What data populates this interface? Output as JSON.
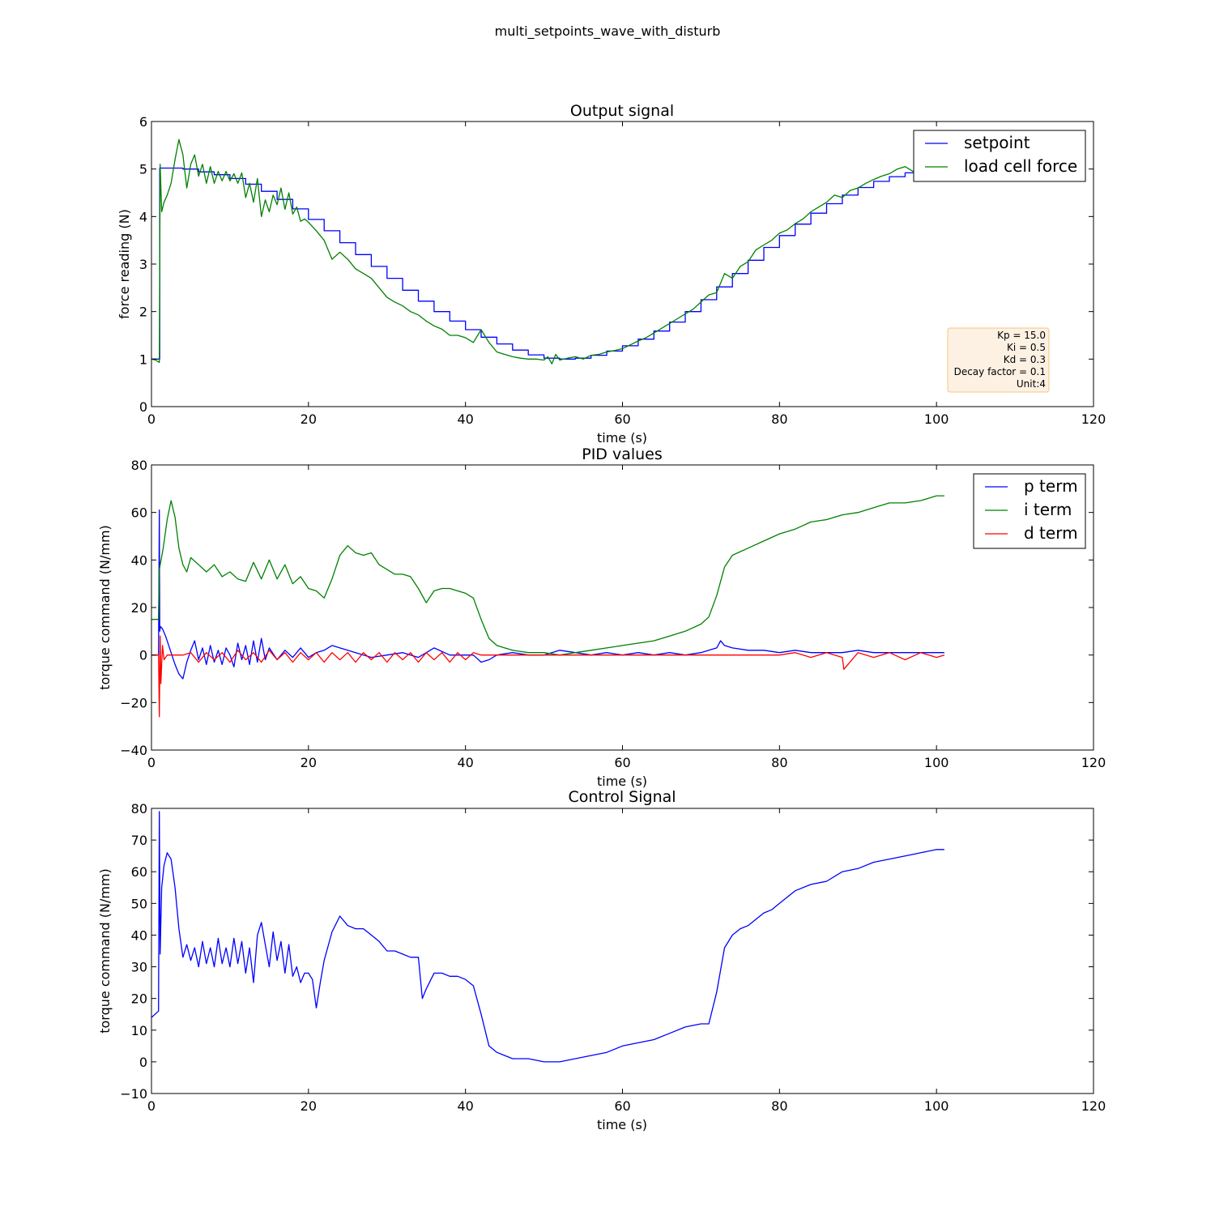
{
  "figure_title": "multi_setpoints_wave_with_disturb",
  "chart_data": [
    {
      "type": "line",
      "title": "Output signal",
      "xlabel": "time (s)",
      "ylabel": "force reading (N)",
      "xlim": [
        0,
        120
      ],
      "ylim": [
        0,
        6
      ],
      "xticks": [
        0,
        20,
        40,
        60,
        80,
        100,
        120
      ],
      "yticks": [
        0,
        1,
        2,
        3,
        4,
        5,
        6
      ],
      "legend_position": "top-right",
      "series": [
        {
          "name": "setpoint",
          "color": "#0000ff",
          "step": true,
          "x": [
            0,
            1,
            1.05,
            2,
            4,
            6,
            8,
            10,
            12,
            14,
            16,
            18,
            20,
            22,
            24,
            26,
            28,
            30,
            32,
            34,
            36,
            38,
            40,
            42,
            44,
            46,
            48,
            50,
            52,
            54,
            56,
            58,
            60,
            62,
            64,
            66,
            68,
            70,
            72,
            74,
            76,
            78,
            80,
            82,
            84,
            86,
            88,
            90,
            92,
            94,
            96,
            98,
            100,
            101
          ],
          "y": [
            1.0,
            1.0,
            5.02,
            5.02,
            5.0,
            4.94,
            4.88,
            4.8,
            4.68,
            4.53,
            4.36,
            4.16,
            3.94,
            3.7,
            3.45,
            3.2,
            2.95,
            2.7,
            2.45,
            2.22,
            2.0,
            1.8,
            1.62,
            1.46,
            1.32,
            1.19,
            1.09,
            1.02,
            1.0,
            1.02,
            1.08,
            1.17,
            1.28,
            1.42,
            1.59,
            1.78,
            2.0,
            2.25,
            2.52,
            2.8,
            3.08,
            3.35,
            3.6,
            3.84,
            4.07,
            4.27,
            4.45,
            4.61,
            4.74,
            4.84,
            4.92,
            4.97,
            4.99,
            5.0
          ]
        },
        {
          "name": "load cell force",
          "color": "#008000",
          "x": [
            0,
            0.5,
            1,
            1.1,
            1.3,
            1.6,
            2,
            2.5,
            3,
            3.5,
            4,
            4.5,
            5,
            5.5,
            6,
            6.5,
            7,
            7.5,
            8,
            8.5,
            9,
            9.5,
            10,
            10.5,
            11,
            11.5,
            12,
            12.5,
            13,
            13.5,
            14,
            14.5,
            15,
            15.5,
            16,
            16.5,
            17,
            17.5,
            18,
            18.5,
            19,
            19.5,
            20,
            21,
            22,
            23,
            24,
            25,
            26,
            27,
            28,
            29,
            30,
            31,
            32,
            33,
            34,
            35,
            36,
            37,
            38,
            39,
            40,
            41,
            42,
            43,
            44,
            45,
            46,
            47,
            48,
            49,
            50,
            50.5,
            51,
            51.5,
            52,
            53,
            54,
            55,
            56,
            57,
            58,
            59,
            60,
            61,
            62,
            63,
            64,
            65,
            66,
            67,
            68,
            69,
            70,
            71,
            72,
            73,
            74,
            75,
            76,
            77,
            78,
            79,
            80,
            81,
            82,
            83,
            84,
            85,
            86,
            87,
            88,
            89,
            90,
            91,
            92,
            93,
            94,
            95,
            96,
            97,
            98,
            99,
            100,
            101
          ],
          "y": [
            1.0,
            0.98,
            0.93,
            5.1,
            4.1,
            4.3,
            4.45,
            4.7,
            5.2,
            5.62,
            5.3,
            4.6,
            5.1,
            5.3,
            4.85,
            5.1,
            4.7,
            5.05,
            4.7,
            4.95,
            4.75,
            4.95,
            4.75,
            4.9,
            4.7,
            4.92,
            4.4,
            4.7,
            4.3,
            4.8,
            4.0,
            4.35,
            4.1,
            4.45,
            4.25,
            4.6,
            4.15,
            4.5,
            4.05,
            4.2,
            3.9,
            3.95,
            3.88,
            3.7,
            3.5,
            3.1,
            3.25,
            3.1,
            2.9,
            2.8,
            2.7,
            2.5,
            2.3,
            2.2,
            2.12,
            2.0,
            1.93,
            1.8,
            1.7,
            1.63,
            1.5,
            1.5,
            1.45,
            1.35,
            1.62,
            1.35,
            1.15,
            1.1,
            1.05,
            1.02,
            1.0,
            1.0,
            0.98,
            1.05,
            0.9,
            1.1,
            0.98,
            1.02,
            1.05,
            1.0,
            1.08,
            1.1,
            1.15,
            1.18,
            1.22,
            1.3,
            1.38,
            1.45,
            1.55,
            1.65,
            1.75,
            1.85,
            1.95,
            2.05,
            2.2,
            2.35,
            2.4,
            2.8,
            2.7,
            2.95,
            3.05,
            3.3,
            3.4,
            3.5,
            3.65,
            3.72,
            3.85,
            3.95,
            4.1,
            4.2,
            4.3,
            4.45,
            4.4,
            4.55,
            4.6,
            4.7,
            4.78,
            4.85,
            4.9,
            5.0,
            5.05,
            4.95,
            4.98,
            5.02,
            4.98,
            4.95
          ]
        }
      ],
      "annotation": [
        "Kp = 15.0",
        "Ki = 0.5",
        "Kd = 0.3",
        "Decay factor = 0.1",
        "Unit:4"
      ]
    },
    {
      "type": "line",
      "title": "PID values",
      "xlabel": "time (s)",
      "ylabel": "torque command (N/mm)",
      "xlim": [
        0,
        120
      ],
      "ylim": [
        -40,
        80
      ],
      "xticks": [
        0,
        20,
        40,
        60,
        80,
        100,
        120
      ],
      "yticks": [
        -40,
        -20,
        0,
        20,
        40,
        60,
        80
      ],
      "legend_position": "top-right",
      "series": [
        {
          "name": "p term",
          "color": "#0000ff",
          "x": [
            0,
            0.9,
            1.0,
            1.05,
            1.15,
            1.4,
            1.8,
            2.2,
            2.6,
            3.0,
            3.5,
            4.0,
            4.5,
            5,
            5.5,
            6,
            6.5,
            7,
            7.5,
            8,
            8.5,
            9,
            9.5,
            10,
            10.5,
            11,
            11.5,
            12,
            12.5,
            13,
            13.5,
            14,
            14.5,
            15,
            16,
            17,
            18,
            19,
            20,
            21,
            22,
            23,
            24,
            26,
            28,
            30,
            32,
            34,
            36,
            38,
            40,
            41,
            42,
            43,
            44,
            46,
            48,
            50,
            52,
            54,
            56,
            58,
            60,
            62,
            64,
            66,
            68,
            70,
            71,
            72,
            72.5,
            73,
            74,
            76,
            78,
            80,
            82,
            84,
            86,
            88,
            90,
            92,
            94,
            96,
            98,
            100,
            101
          ],
          "y": [
            0,
            0,
            61,
            10,
            12,
            11,
            8,
            4,
            0,
            -4,
            -8,
            -10,
            -3,
            2,
            6,
            -2,
            3,
            -4,
            4,
            -3,
            2,
            -4,
            3,
            0,
            -5,
            5,
            -2,
            4,
            -4,
            6,
            -3,
            7,
            -2,
            3,
            -2,
            2,
            -1,
            3,
            -1,
            1,
            2,
            4,
            3,
            1,
            -1,
            0,
            1,
            -1,
            3,
            0,
            0,
            0,
            -3,
            -2,
            0,
            1,
            0,
            0,
            2,
            1,
            0,
            1,
            0,
            1,
            0,
            1,
            0,
            1,
            2,
            3,
            6,
            4,
            3,
            2,
            2,
            1,
            2,
            1,
            1,
            1,
            2,
            1,
            1,
            1,
            1,
            1,
            1
          ]
        },
        {
          "name": "i term",
          "color": "#008000",
          "x": [
            0,
            0.9,
            1.0,
            1.5,
            2,
            2.5,
            3,
            3.5,
            4,
            4.5,
            5,
            6,
            7,
            8,
            9,
            10,
            11,
            12,
            13,
            14,
            15,
            16,
            17,
            18,
            19,
            20,
            21,
            22,
            23,
            24,
            25,
            26,
            27,
            28,
            29,
            30,
            31,
            32,
            33,
            34,
            35,
            36,
            37,
            38,
            39,
            40,
            41,
            42,
            43,
            44,
            45,
            46,
            48,
            50,
            52,
            54,
            56,
            58,
            60,
            62,
            64,
            66,
            68,
            70,
            71,
            72,
            73,
            74,
            76,
            78,
            80,
            82,
            84,
            86,
            88,
            90,
            92,
            94,
            96,
            98,
            99,
            100,
            101
          ],
          "y": [
            15,
            15,
            36,
            45,
            57,
            65,
            58,
            45,
            38,
            35,
            41,
            38,
            35,
            38,
            33,
            35,
            32,
            31,
            39,
            32,
            40,
            32,
            38,
            30,
            33,
            28,
            27,
            24,
            32,
            42,
            46,
            43,
            42,
            43,
            38,
            36,
            34,
            34,
            33,
            28,
            22,
            27,
            28,
            28,
            27,
            26,
            24,
            15,
            7,
            4,
            3,
            2,
            1,
            1,
            0,
            1,
            2,
            3,
            4,
            5,
            6,
            8,
            10,
            13,
            16,
            25,
            37,
            42,
            45,
            48,
            51,
            53,
            56,
            57,
            59,
            60,
            62,
            64,
            64,
            65,
            66,
            67,
            67
          ]
        },
        {
          "name": "d term",
          "color": "#ff0000",
          "x": [
            0,
            0.9,
            1.0,
            1.1,
            1.2,
            1.4,
            1.6,
            2,
            3,
            4,
            5,
            6,
            7,
            8,
            9,
            10,
            11,
            12,
            13,
            14,
            15,
            16,
            17,
            18,
            19,
            20,
            21,
            22,
            23,
            24,
            25,
            26,
            27,
            28,
            29,
            30,
            31,
            32,
            33,
            34,
            35,
            36,
            37,
            38,
            39,
            40,
            41,
            42,
            50,
            60,
            70,
            80,
            82,
            84,
            86,
            88,
            88.2,
            90,
            92,
            94,
            96,
            98,
            100,
            101
          ],
          "y": [
            0,
            0,
            -26,
            8,
            -12,
            4,
            -2,
            0,
            0,
            0,
            1,
            -3,
            1,
            -2,
            1,
            -3,
            2,
            -2,
            1,
            -3,
            2,
            -2,
            1,
            -3,
            1,
            -2,
            1,
            -3,
            1,
            -2,
            1,
            -3,
            1,
            -2,
            1,
            -3,
            1,
            -2,
            1,
            -3,
            1,
            -2,
            1,
            -3,
            1,
            -2,
            1,
            0,
            0,
            0,
            0,
            0,
            1,
            -1,
            1,
            -1,
            -6,
            1,
            -1,
            1,
            -2,
            1,
            -1,
            0
          ]
        }
      ]
    },
    {
      "type": "line",
      "title": "Control Signal",
      "xlabel": "time (s)",
      "ylabel": "torque command (N/mm)",
      "xlim": [
        0,
        120
      ],
      "ylim": [
        -10,
        80
      ],
      "xticks": [
        0,
        20,
        40,
        60,
        80,
        100,
        120
      ],
      "yticks": [
        -10,
        0,
        10,
        20,
        30,
        40,
        50,
        60,
        70,
        80
      ],
      "series": [
        {
          "name": "",
          "color": "#0000ff",
          "x": [
            0,
            0.9,
            1.0,
            1.1,
            1.3,
            1.6,
            2,
            2.5,
            3,
            3.5,
            4,
            4.5,
            5,
            5.5,
            6,
            6.5,
            7,
            7.5,
            8,
            8.5,
            9,
            9.5,
            10,
            10.5,
            11,
            11.5,
            12,
            12.5,
            13,
            13.5,
            14,
            14.5,
            15,
            15.5,
            16,
            16.5,
            17,
            17.5,
            18,
            18.5,
            19,
            19.5,
            20,
            20.5,
            21,
            21.5,
            22,
            23,
            24,
            25,
            26,
            27,
            28,
            29,
            30,
            31,
            32,
            33,
            34,
            34.5,
            35,
            36,
            37,
            38,
            39,
            40,
            41,
            42,
            43,
            44,
            45,
            46,
            48,
            50,
            51,
            52,
            54,
            56,
            58,
            60,
            62,
            64,
            66,
            68,
            70,
            71,
            72,
            73,
            74,
            75,
            76,
            77,
            78,
            79,
            80,
            82,
            84,
            86,
            88,
            90,
            92,
            94,
            96,
            98,
            100,
            101
          ],
          "y": [
            14,
            16,
            79,
            34,
            55,
            62,
            66,
            64,
            55,
            42,
            33,
            37,
            32,
            36,
            30,
            38,
            31,
            36,
            30,
            39,
            31,
            36,
            30,
            39,
            31,
            38,
            28,
            36,
            25,
            40,
            44,
            37,
            30,
            41,
            32,
            38,
            28,
            37,
            27,
            30,
            25,
            28,
            28,
            26,
            17,
            25,
            32,
            41,
            46,
            43,
            42,
            42,
            40,
            38,
            35,
            35,
            34,
            33,
            33,
            20,
            23,
            28,
            28,
            27,
            27,
            26,
            24,
            15,
            5,
            3,
            2,
            1,
            1,
            0,
            0,
            0,
            1,
            2,
            3,
            5,
            6,
            7,
            9,
            11,
            12,
            12,
            22,
            36,
            40,
            42,
            43,
            45,
            47,
            48,
            50,
            54,
            56,
            57,
            60,
            61,
            63,
            64,
            65,
            66,
            67,
            67
          ]
        }
      ]
    }
  ]
}
